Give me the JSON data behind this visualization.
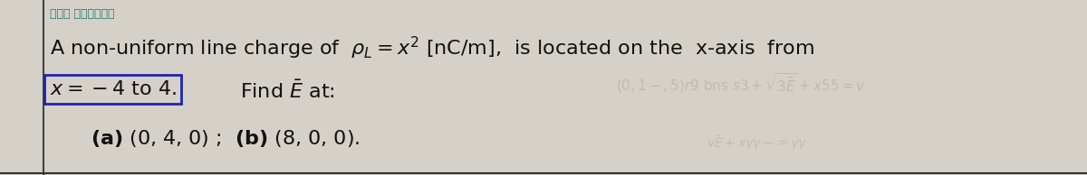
{
  "bg_color": "#d5d1c8",
  "font_size_main": 16,
  "text_color": "#111111",
  "box_color": "#2222aa",
  "faded_color": "#b0aca0",
  "arabic_color": "#2a7a6a",
  "left_border_color": "#444444",
  "bottom_border_color": "#333333"
}
